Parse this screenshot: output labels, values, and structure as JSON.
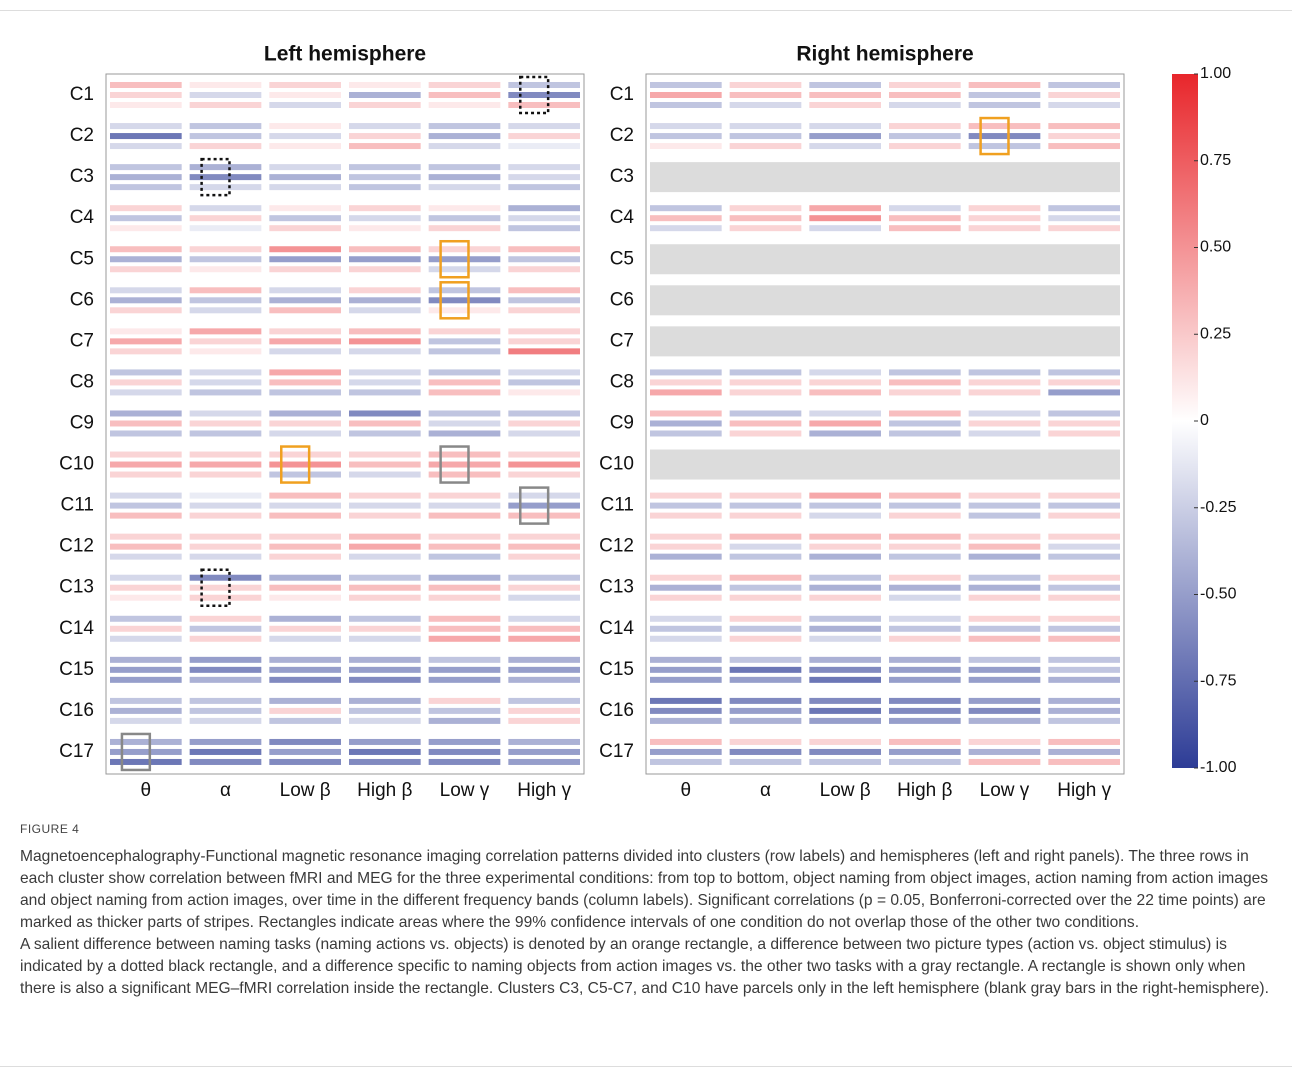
{
  "chart_data": [
    {
      "type": "heatmap",
      "title": "Left hemisphere",
      "categories": [
        "C1",
        "C2",
        "C3",
        "C4",
        "C5",
        "C6",
        "C7",
        "C8",
        "C9",
        "C10",
        "C11",
        "C12",
        "C13",
        "C14",
        "C15",
        "C16",
        "C17"
      ],
      "x": [
        "θ",
        "α",
        "Low β",
        "High β",
        "Low γ",
        "High γ"
      ],
      "values": [
        [
          [
            0.3,
            0.1,
            0.2,
            0.1,
            0.2,
            -0.3
          ],
          [
            0.2,
            -0.2,
            0.1,
            -0.4,
            0.3,
            -0.6
          ],
          [
            0.1,
            0.2,
            -0.2,
            0.2,
            0.1,
            0.3
          ]
        ],
        [
          [
            -0.2,
            -0.3,
            0.1,
            -0.2,
            -0.3,
            -0.2
          ],
          [
            -0.7,
            -0.3,
            -0.2,
            0.2,
            -0.4,
            0.2
          ],
          [
            -0.2,
            0.2,
            0.1,
            0.3,
            -0.2,
            -0.1
          ]
        ],
        [
          [
            -0.3,
            -0.4,
            -0.2,
            -0.3,
            -0.3,
            -0.2
          ],
          [
            -0.4,
            -0.6,
            -0.4,
            -0.3,
            -0.4,
            -0.2
          ],
          [
            -0.3,
            -0.2,
            -0.2,
            -0.3,
            -0.2,
            -0.3
          ]
        ],
        [
          [
            0.2,
            -0.2,
            0.1,
            0.2,
            0.1,
            -0.4
          ],
          [
            -0.3,
            0.2,
            -0.3,
            -0.2,
            -0.3,
            -0.2
          ],
          [
            0.1,
            -0.1,
            0.2,
            0.1,
            0.2,
            -0.3
          ]
        ],
        [
          [
            0.3,
            0.2,
            0.5,
            0.3,
            0.2,
            0.3
          ],
          [
            -0.4,
            -0.3,
            -0.5,
            -0.5,
            -0.5,
            -0.3
          ],
          [
            0.2,
            0.1,
            0.2,
            0.2,
            -0.2,
            0.2
          ]
        ],
        [
          [
            -0.2,
            0.3,
            -0.2,
            0.2,
            -0.3,
            0.3
          ],
          [
            -0.4,
            -0.3,
            -0.4,
            -0.4,
            -0.6,
            -0.3
          ],
          [
            0.2,
            -0.2,
            0.3,
            -0.2,
            0.1,
            0.2
          ]
        ],
        [
          [
            0.1,
            0.4,
            0.2,
            0.3,
            0.2,
            0.2
          ],
          [
            0.4,
            0.2,
            0.4,
            0.5,
            -0.3,
            0.2
          ],
          [
            0.2,
            0.1,
            -0.2,
            -0.2,
            -0.3,
            0.6
          ]
        ],
        [
          [
            -0.3,
            -0.2,
            0.4,
            -0.2,
            -0.3,
            -0.2
          ],
          [
            0.2,
            -0.2,
            0.3,
            -0.2,
            0.3,
            -0.3
          ],
          [
            -0.2,
            -0.3,
            -0.3,
            -0.3,
            0.3,
            0.1
          ]
        ],
        [
          [
            -0.4,
            -0.2,
            -0.4,
            -0.6,
            -0.3,
            -0.3
          ],
          [
            0.3,
            0.2,
            0.2,
            0.3,
            -0.2,
            0.2
          ],
          [
            -0.3,
            -0.3,
            -0.2,
            -0.3,
            -0.4,
            -0.2
          ]
        ],
        [
          [
            0.2,
            0.2,
            0.2,
            0.2,
            0.3,
            0.2
          ],
          [
            0.4,
            0.4,
            0.5,
            0.3,
            0.4,
            0.5
          ],
          [
            0.2,
            0.2,
            -0.3,
            -0.2,
            0.3,
            0.2
          ]
        ],
        [
          [
            -0.2,
            -0.1,
            0.3,
            0.2,
            0.2,
            -0.2
          ],
          [
            -0.3,
            -0.2,
            -0.2,
            -0.2,
            -0.2,
            -0.5
          ],
          [
            0.3,
            0.2,
            0.3,
            0.2,
            0.3,
            0.3
          ]
        ],
        [
          [
            0.2,
            0.2,
            0.2,
            0.3,
            0.2,
            0.2
          ],
          [
            0.3,
            0.2,
            0.3,
            0.4,
            0.3,
            0.3
          ],
          [
            -0.2,
            -0.2,
            0.2,
            -0.2,
            -0.3,
            0.2
          ]
        ],
        [
          [
            -0.2,
            -0.6,
            -0.4,
            -0.3,
            -0.4,
            -0.3
          ],
          [
            0.2,
            0.2,
            0.3,
            0.3,
            0.3,
            0.2
          ],
          [
            0.1,
            0.2,
            0.1,
            0.2,
            0.2,
            -0.2
          ]
        ],
        [
          [
            -0.3,
            0.2,
            -0.4,
            -0.3,
            0.3,
            -0.2
          ],
          [
            0.2,
            -0.3,
            0.2,
            0.2,
            0.3,
            0.3
          ],
          [
            -0.2,
            0.2,
            -0.2,
            -0.2,
            0.4,
            0.4
          ]
        ],
        [
          [
            -0.4,
            -0.5,
            -0.4,
            -0.4,
            -0.3,
            -0.4
          ],
          [
            -0.5,
            -0.6,
            -0.5,
            -0.5,
            -0.5,
            -0.5
          ],
          [
            -0.5,
            -0.4,
            -0.6,
            -0.6,
            -0.5,
            -0.4
          ]
        ],
        [
          [
            -0.3,
            -0.3,
            -0.4,
            -0.4,
            0.2,
            -0.3
          ],
          [
            -0.4,
            -0.3,
            0.2,
            -0.3,
            -0.3,
            0.2
          ],
          [
            -0.2,
            -0.2,
            -0.3,
            -0.2,
            -0.4,
            0.2
          ]
        ],
        [
          [
            -0.4,
            -0.5,
            -0.6,
            -0.5,
            -0.5,
            -0.4
          ],
          [
            -0.5,
            -0.7,
            -0.5,
            -0.7,
            -0.6,
            -0.5
          ],
          [
            -0.7,
            -0.6,
            -0.6,
            -0.6,
            -0.6,
            -0.5
          ]
        ]
      ]
    },
    {
      "type": "heatmap",
      "title": "Right hemisphere",
      "categories": [
        "C1",
        "C2",
        "C3",
        "C4",
        "C5",
        "C6",
        "C7",
        "C8",
        "C9",
        "C10",
        "C11",
        "C12",
        "C13",
        "C14",
        "C15",
        "C16",
        "C17"
      ],
      "x": [
        "θ",
        "α",
        "Low β",
        "High β",
        "Low γ",
        "High γ"
      ],
      "values": [
        [
          [
            -0.3,
            0.2,
            -0.3,
            0.2,
            0.3,
            -0.3
          ],
          [
            0.4,
            0.3,
            0.3,
            0.3,
            -0.3,
            0.2
          ],
          [
            -0.3,
            -0.2,
            0.2,
            -0.2,
            -0.3,
            -0.2
          ]
        ],
        [
          [
            -0.2,
            -0.2,
            -0.2,
            0.2,
            0.3,
            0.3
          ],
          [
            -0.3,
            -0.3,
            -0.5,
            -0.3,
            -0.6,
            0.2
          ],
          [
            0.1,
            0.2,
            -0.2,
            0.2,
            -0.3,
            0.3
          ]
        ],
        null,
        [
          [
            -0.3,
            0.2,
            0.4,
            -0.2,
            0.2,
            -0.3
          ],
          [
            0.3,
            0.3,
            0.5,
            0.3,
            0.2,
            -0.2
          ],
          [
            -0.2,
            0.2,
            -0.2,
            0.3,
            0.2,
            0.2
          ]
        ],
        null,
        null,
        null,
        [
          [
            -0.3,
            -0.3,
            -0.2,
            -0.3,
            -0.3,
            -0.3
          ],
          [
            0.2,
            0.2,
            0.2,
            0.3,
            0.2,
            0.2
          ],
          [
            0.4,
            0.2,
            0.3,
            0.2,
            0.2,
            -0.5
          ]
        ],
        [
          [
            0.3,
            -0.3,
            -0.2,
            0.3,
            -0.2,
            -0.3
          ],
          [
            -0.4,
            0.3,
            0.4,
            -0.3,
            0.2,
            0.2
          ],
          [
            -0.3,
            0.2,
            -0.4,
            -0.3,
            -0.2,
            0.2
          ]
        ],
        null,
        [
          [
            0.2,
            0.2,
            0.4,
            0.3,
            0.2,
            0.2
          ],
          [
            -0.3,
            -0.3,
            -0.3,
            -0.3,
            -0.3,
            -0.3
          ],
          [
            0.2,
            0.2,
            -0.2,
            0.2,
            -0.3,
            0.2
          ]
        ],
        [
          [
            0.2,
            0.3,
            0.3,
            0.3,
            0.2,
            0.2
          ],
          [
            0.2,
            -0.2,
            0.2,
            0.2,
            0.3,
            -0.2
          ],
          [
            -0.4,
            -0.3,
            -0.4,
            -0.3,
            -0.4,
            -0.3
          ]
        ],
        [
          [
            0.2,
            0.3,
            -0.3,
            0.2,
            -0.3,
            0.2
          ],
          [
            -0.4,
            -0.3,
            -0.4,
            -0.4,
            -0.4,
            -0.3
          ],
          [
            0.2,
            0.2,
            0.2,
            -0.2,
            0.2,
            0.2
          ]
        ],
        [
          [
            -0.2,
            0.2,
            -0.3,
            -0.2,
            0.2,
            0.2
          ],
          [
            -0.3,
            -0.3,
            -0.4,
            -0.3,
            -0.3,
            -0.3
          ],
          [
            -0.2,
            0.2,
            -0.2,
            0.2,
            0.3,
            0.3
          ]
        ],
        [
          [
            -0.4,
            -0.3,
            -0.4,
            -0.4,
            -0.3,
            -0.3
          ],
          [
            -0.5,
            -0.7,
            -0.6,
            -0.5,
            -0.5,
            -0.3
          ],
          [
            -0.5,
            -0.5,
            -0.7,
            -0.5,
            -0.5,
            -0.4
          ]
        ],
        [
          [
            -0.7,
            -0.6,
            -0.6,
            -0.6,
            -0.5,
            -0.4
          ],
          [
            -0.6,
            -0.5,
            -0.7,
            -0.6,
            -0.6,
            -0.4
          ],
          [
            -0.4,
            -0.4,
            -0.5,
            -0.5,
            -0.4,
            -0.3
          ]
        ],
        [
          [
            0.3,
            0.2,
            0.2,
            0.3,
            0.2,
            0.3
          ],
          [
            -0.5,
            -0.6,
            -0.6,
            -0.5,
            -0.4,
            -0.4
          ],
          [
            -0.3,
            -0.3,
            -0.3,
            -0.3,
            0.3,
            0.3
          ]
        ]
      ]
    },
    {
      "type": "colorbar",
      "ylim": [
        -1,
        1
      ],
      "yticks": [
        {
          "value": 1,
          "label": "1.00"
        },
        {
          "value": 0.75,
          "label": "0.75"
        },
        {
          "value": 0.5,
          "label": "0.50"
        },
        {
          "value": 0.25,
          "label": "0.25"
        },
        0,
        {
          "value": -0.25,
          "label": "-0.25"
        },
        {
          "value": -0.5,
          "label": "-0.50"
        },
        {
          "value": -0.75,
          "label": "-0.75"
        },
        {
          "value": -1,
          "label": "-1.00"
        }
      ]
    }
  ],
  "figure": {
    "label": "FIGURE 4",
    "caption": [
      "Magnetoencephalography-Functional magnetic resonance imaging correlation patterns divided into clusters (row labels) and hemispheres (left and right panels). The three rows in each cluster show correlation between fMRI and MEG for the three experimental conditions: from top to bottom, object naming from object images, action naming from action images and object naming from action images, over time in the different frequency bands (column labels). Significant correlations (p = 0.05, Bonferroni-corrected over the 22 time points) are marked as thicker parts of stripes. Rectangles indicate areas where the 99% confidence intervals of one condition do not overlap those of the other two conditions.",
      "A salient difference between naming tasks (naming actions vs. objects) is denoted by an orange rectangle, a difference between two picture types (action vs. object stimulus) is indicated by a dotted black rectangle, and a difference specific to naming objects from action images vs. the other two tasks with a gray rectangle. A rectangle is shown only when there is also a significant MEG–fMRI correlation inside the rectangle. Clusters C3, C5-C7, and C10 have parcels only in the left hemisphere (blank gray bars in the right-hemisphere)."
    ]
  }
}
